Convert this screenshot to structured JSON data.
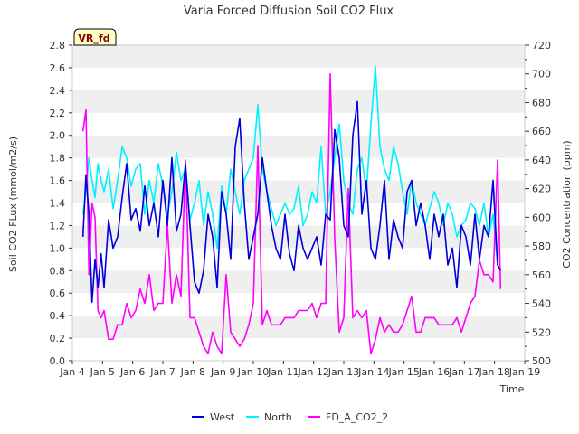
{
  "chart_data": {
    "type": "line",
    "title": "Varia Forced Diffusion Soil CO2 Flux",
    "badge": "VR_fd",
    "xlabel": "Time",
    "ylabel": "Soil CO2 FLux (mmol/m2/s)",
    "y2label": "CO2 Concentration (ppm)",
    "xlim": [
      4,
      19
    ],
    "ylim": [
      0,
      2.8
    ],
    "y2lim": [
      500,
      720
    ],
    "x_ticks": [
      {
        "v": 4,
        "label": "Jan 4"
      },
      {
        "v": 5,
        "label": "Jan 5"
      },
      {
        "v": 6,
        "label": "Jan 6"
      },
      {
        "v": 7,
        "label": "Jan 7"
      },
      {
        "v": 8,
        "label": "Jan 8"
      },
      {
        "v": 9,
        "label": "Jan 9"
      },
      {
        "v": 10,
        "label": "Jan 10"
      },
      {
        "v": 11,
        "label": "Jan 11"
      },
      {
        "v": 12,
        "label": "Jan 12"
      },
      {
        "v": 13,
        "label": "Jan 13"
      },
      {
        "v": 14,
        "label": "Jan 14"
      },
      {
        "v": 15,
        "label": "Jan 15"
      },
      {
        "v": 16,
        "label": "Jan 16"
      },
      {
        "v": 17,
        "label": "Jan 17"
      },
      {
        "v": 18,
        "label": "Jan 18"
      },
      {
        "v": 19,
        "label": "Jan 19"
      }
    ],
    "y_ticks": [
      "0.0",
      "0.2",
      "0.4",
      "0.6",
      "0.8",
      "1.0",
      "1.2",
      "1.4",
      "1.6",
      "1.8",
      "2.0",
      "2.2",
      "2.4",
      "2.6",
      "2.8"
    ],
    "y2_ticks": [
      "500",
      "520",
      "540",
      "560",
      "580",
      "600",
      "620",
      "640",
      "660",
      "680",
      "700",
      "720"
    ],
    "grid": "horizontal bands",
    "legend_position": "bottom-center",
    "colors": {
      "West": "#0000dd",
      "North": "#00f2ff",
      "FD_A_CO2_2": "#ff00ff",
      "band": "#efefef"
    },
    "series": [
      {
        "name": "West",
        "axis": "left",
        "x": [
          4.35,
          4.45,
          4.55,
          4.65,
          4.75,
          4.85,
          4.95,
          5.05,
          5.2,
          5.35,
          5.5,
          5.65,
          5.8,
          5.95,
          6.1,
          6.25,
          6.4,
          6.55,
          6.7,
          6.85,
          7.0,
          7.15,
          7.3,
          7.45,
          7.6,
          7.75,
          7.9,
          8.05,
          8.2,
          8.35,
          8.5,
          8.65,
          8.8,
          8.95,
          9.1,
          9.25,
          9.4,
          9.55,
          9.7,
          9.85,
          10.0,
          10.15,
          10.3,
          10.45,
          10.6,
          10.75,
          10.9,
          11.05,
          11.2,
          11.35,
          11.5,
          11.65,
          11.8,
          11.95,
          12.1,
          12.25,
          12.4,
          12.55,
          12.7,
          12.85,
          13.0,
          13.15,
          13.3,
          13.45,
          13.6,
          13.75,
          13.9,
          14.05,
          14.2,
          14.35,
          14.5,
          14.65,
          14.8,
          14.95,
          15.1,
          15.25,
          15.4,
          15.55,
          15.7,
          15.85,
          16.0,
          16.15,
          16.3,
          16.45,
          16.6,
          16.75,
          16.9,
          17.05,
          17.2,
          17.35,
          17.5,
          17.65,
          17.8,
          17.95,
          18.1,
          18.2
        ],
        "values": [
          1.1,
          1.65,
          1.3,
          0.52,
          0.9,
          0.65,
          0.95,
          0.65,
          1.25,
          1.0,
          1.1,
          1.45,
          1.75,
          1.25,
          1.35,
          1.15,
          1.55,
          1.2,
          1.4,
          1.1,
          1.6,
          1.2,
          1.8,
          1.15,
          1.3,
          1.75,
          1.2,
          0.7,
          0.6,
          0.8,
          1.3,
          1.1,
          0.65,
          1.5,
          1.3,
          0.9,
          1.9,
          2.15,
          1.4,
          0.9,
          1.1,
          1.3,
          1.8,
          1.5,
          1.2,
          1.0,
          0.9,
          1.3,
          0.95,
          0.8,
          1.2,
          1.0,
          0.9,
          1.0,
          1.1,
          0.85,
          1.3,
          1.25,
          2.05,
          1.8,
          1.2,
          1.1,
          2.0,
          2.3,
          1.3,
          1.6,
          1.0,
          0.9,
          1.2,
          1.6,
          0.9,
          1.25,
          1.1,
          1.0,
          1.5,
          1.6,
          1.2,
          1.4,
          1.2,
          0.9,
          1.3,
          1.1,
          1.3,
          0.85,
          1.0,
          0.65,
          1.2,
          1.1,
          0.85,
          1.3,
          0.9,
          1.2,
          1.1,
          1.6,
          0.85,
          0.8
        ]
      },
      {
        "name": "North",
        "axis": "left",
        "x": [
          4.35,
          4.45,
          4.55,
          4.65,
          4.75,
          4.85,
          4.95,
          5.05,
          5.2,
          5.35,
          5.5,
          5.65,
          5.8,
          5.95,
          6.1,
          6.25,
          6.4,
          6.55,
          6.7,
          6.85,
          7.0,
          7.15,
          7.3,
          7.45,
          7.6,
          7.75,
          7.9,
          8.05,
          8.2,
          8.35,
          8.5,
          8.65,
          8.8,
          8.95,
          9.1,
          9.25,
          9.4,
          9.55,
          9.7,
          9.85,
          10.0,
          10.15,
          10.3,
          10.45,
          10.6,
          10.75,
          10.9,
          11.05,
          11.2,
          11.35,
          11.5,
          11.65,
          11.8,
          11.95,
          12.1,
          12.25,
          12.4,
          12.55,
          12.7,
          12.85,
          13.0,
          13.15,
          13.3,
          13.45,
          13.6,
          13.75,
          13.9,
          14.05,
          14.2,
          14.35,
          14.5,
          14.65,
          14.8,
          14.95,
          15.1,
          15.25,
          15.4,
          15.55,
          15.7,
          15.85,
          16.0,
          16.15,
          16.3,
          16.45,
          16.6,
          16.75,
          16.9,
          17.05,
          17.2,
          17.35,
          17.5,
          17.65,
          17.8,
          17.95,
          18.1,
          18.2
        ],
        "values": [
          1.3,
          1.5,
          1.8,
          1.6,
          1.45,
          1.75,
          1.6,
          1.5,
          1.7,
          1.35,
          1.6,
          1.9,
          1.8,
          1.55,
          1.7,
          1.75,
          1.3,
          1.6,
          1.4,
          1.75,
          1.55,
          1.3,
          1.5,
          1.85,
          1.6,
          1.7,
          1.25,
          1.4,
          1.6,
          1.2,
          1.5,
          1.3,
          1.0,
          1.55,
          1.3,
          1.7,
          1.5,
          1.3,
          1.6,
          1.7,
          1.8,
          2.27,
          1.7,
          1.5,
          1.35,
          1.2,
          1.3,
          1.4,
          1.3,
          1.35,
          1.55,
          1.2,
          1.3,
          1.5,
          1.4,
          1.9,
          1.3,
          1.5,
          1.8,
          2.1,
          1.6,
          1.4,
          1.3,
          1.7,
          1.8,
          1.5,
          2.1,
          2.61,
          1.9,
          1.7,
          1.6,
          1.9,
          1.75,
          1.5,
          1.3,
          1.6,
          1.4,
          1.3,
          1.2,
          1.35,
          1.5,
          1.4,
          1.2,
          1.4,
          1.3,
          1.1,
          1.2,
          1.25,
          1.4,
          1.35,
          1.2,
          1.4,
          1.1,
          1.3,
          0.85,
          0.8
        ]
      },
      {
        "name": "FD_A_CO2_2",
        "axis": "right",
        "x": [
          4.35,
          4.45,
          4.55,
          4.65,
          4.75,
          4.85,
          4.95,
          5.05,
          5.2,
          5.35,
          5.5,
          5.65,
          5.8,
          5.95,
          6.1,
          6.25,
          6.4,
          6.55,
          6.7,
          6.85,
          7.0,
          7.15,
          7.3,
          7.45,
          7.6,
          7.75,
          7.9,
          8.05,
          8.2,
          8.35,
          8.5,
          8.65,
          8.8,
          8.95,
          9.1,
          9.25,
          9.4,
          9.55,
          9.7,
          9.85,
          10.0,
          10.15,
          10.3,
          10.45,
          10.6,
          10.75,
          10.9,
          11.05,
          11.2,
          11.35,
          11.5,
          11.65,
          11.8,
          11.95,
          12.1,
          12.25,
          12.4,
          12.55,
          12.7,
          12.85,
          13.0,
          13.15,
          13.3,
          13.45,
          13.6,
          13.75,
          13.9,
          14.05,
          14.2,
          14.35,
          14.5,
          14.65,
          14.8,
          14.95,
          15.1,
          15.25,
          15.4,
          15.55,
          15.7,
          15.85,
          16.0,
          16.15,
          16.3,
          16.45,
          16.6,
          16.75,
          16.9,
          17.05,
          17.2,
          17.35,
          17.5,
          17.65,
          17.8,
          17.95,
          18.1,
          18.2
        ],
        "values": [
          660,
          675,
          560,
          610,
          600,
          535,
          530,
          535,
          515,
          515,
          525,
          525,
          540,
          530,
          535,
          550,
          540,
          560,
          535,
          540,
          540,
          595,
          540,
          560,
          545,
          640,
          530,
          530,
          520,
          510,
          505,
          520,
          510,
          505,
          560,
          520,
          515,
          510,
          515,
          525,
          540,
          650,
          525,
          535,
          525,
          525,
          525,
          530,
          530,
          530,
          535,
          535,
          535,
          540,
          530,
          540,
          540,
          700,
          585,
          520,
          530,
          620,
          530,
          535,
          530,
          535,
          505,
          515,
          530,
          520,
          525,
          520,
          520,
          525,
          535,
          545,
          520,
          520,
          530,
          530,
          530,
          525,
          525,
          525,
          525,
          530,
          520,
          530,
          540,
          545,
          570,
          560,
          560,
          555,
          640,
          550
        ]
      }
    ]
  }
}
